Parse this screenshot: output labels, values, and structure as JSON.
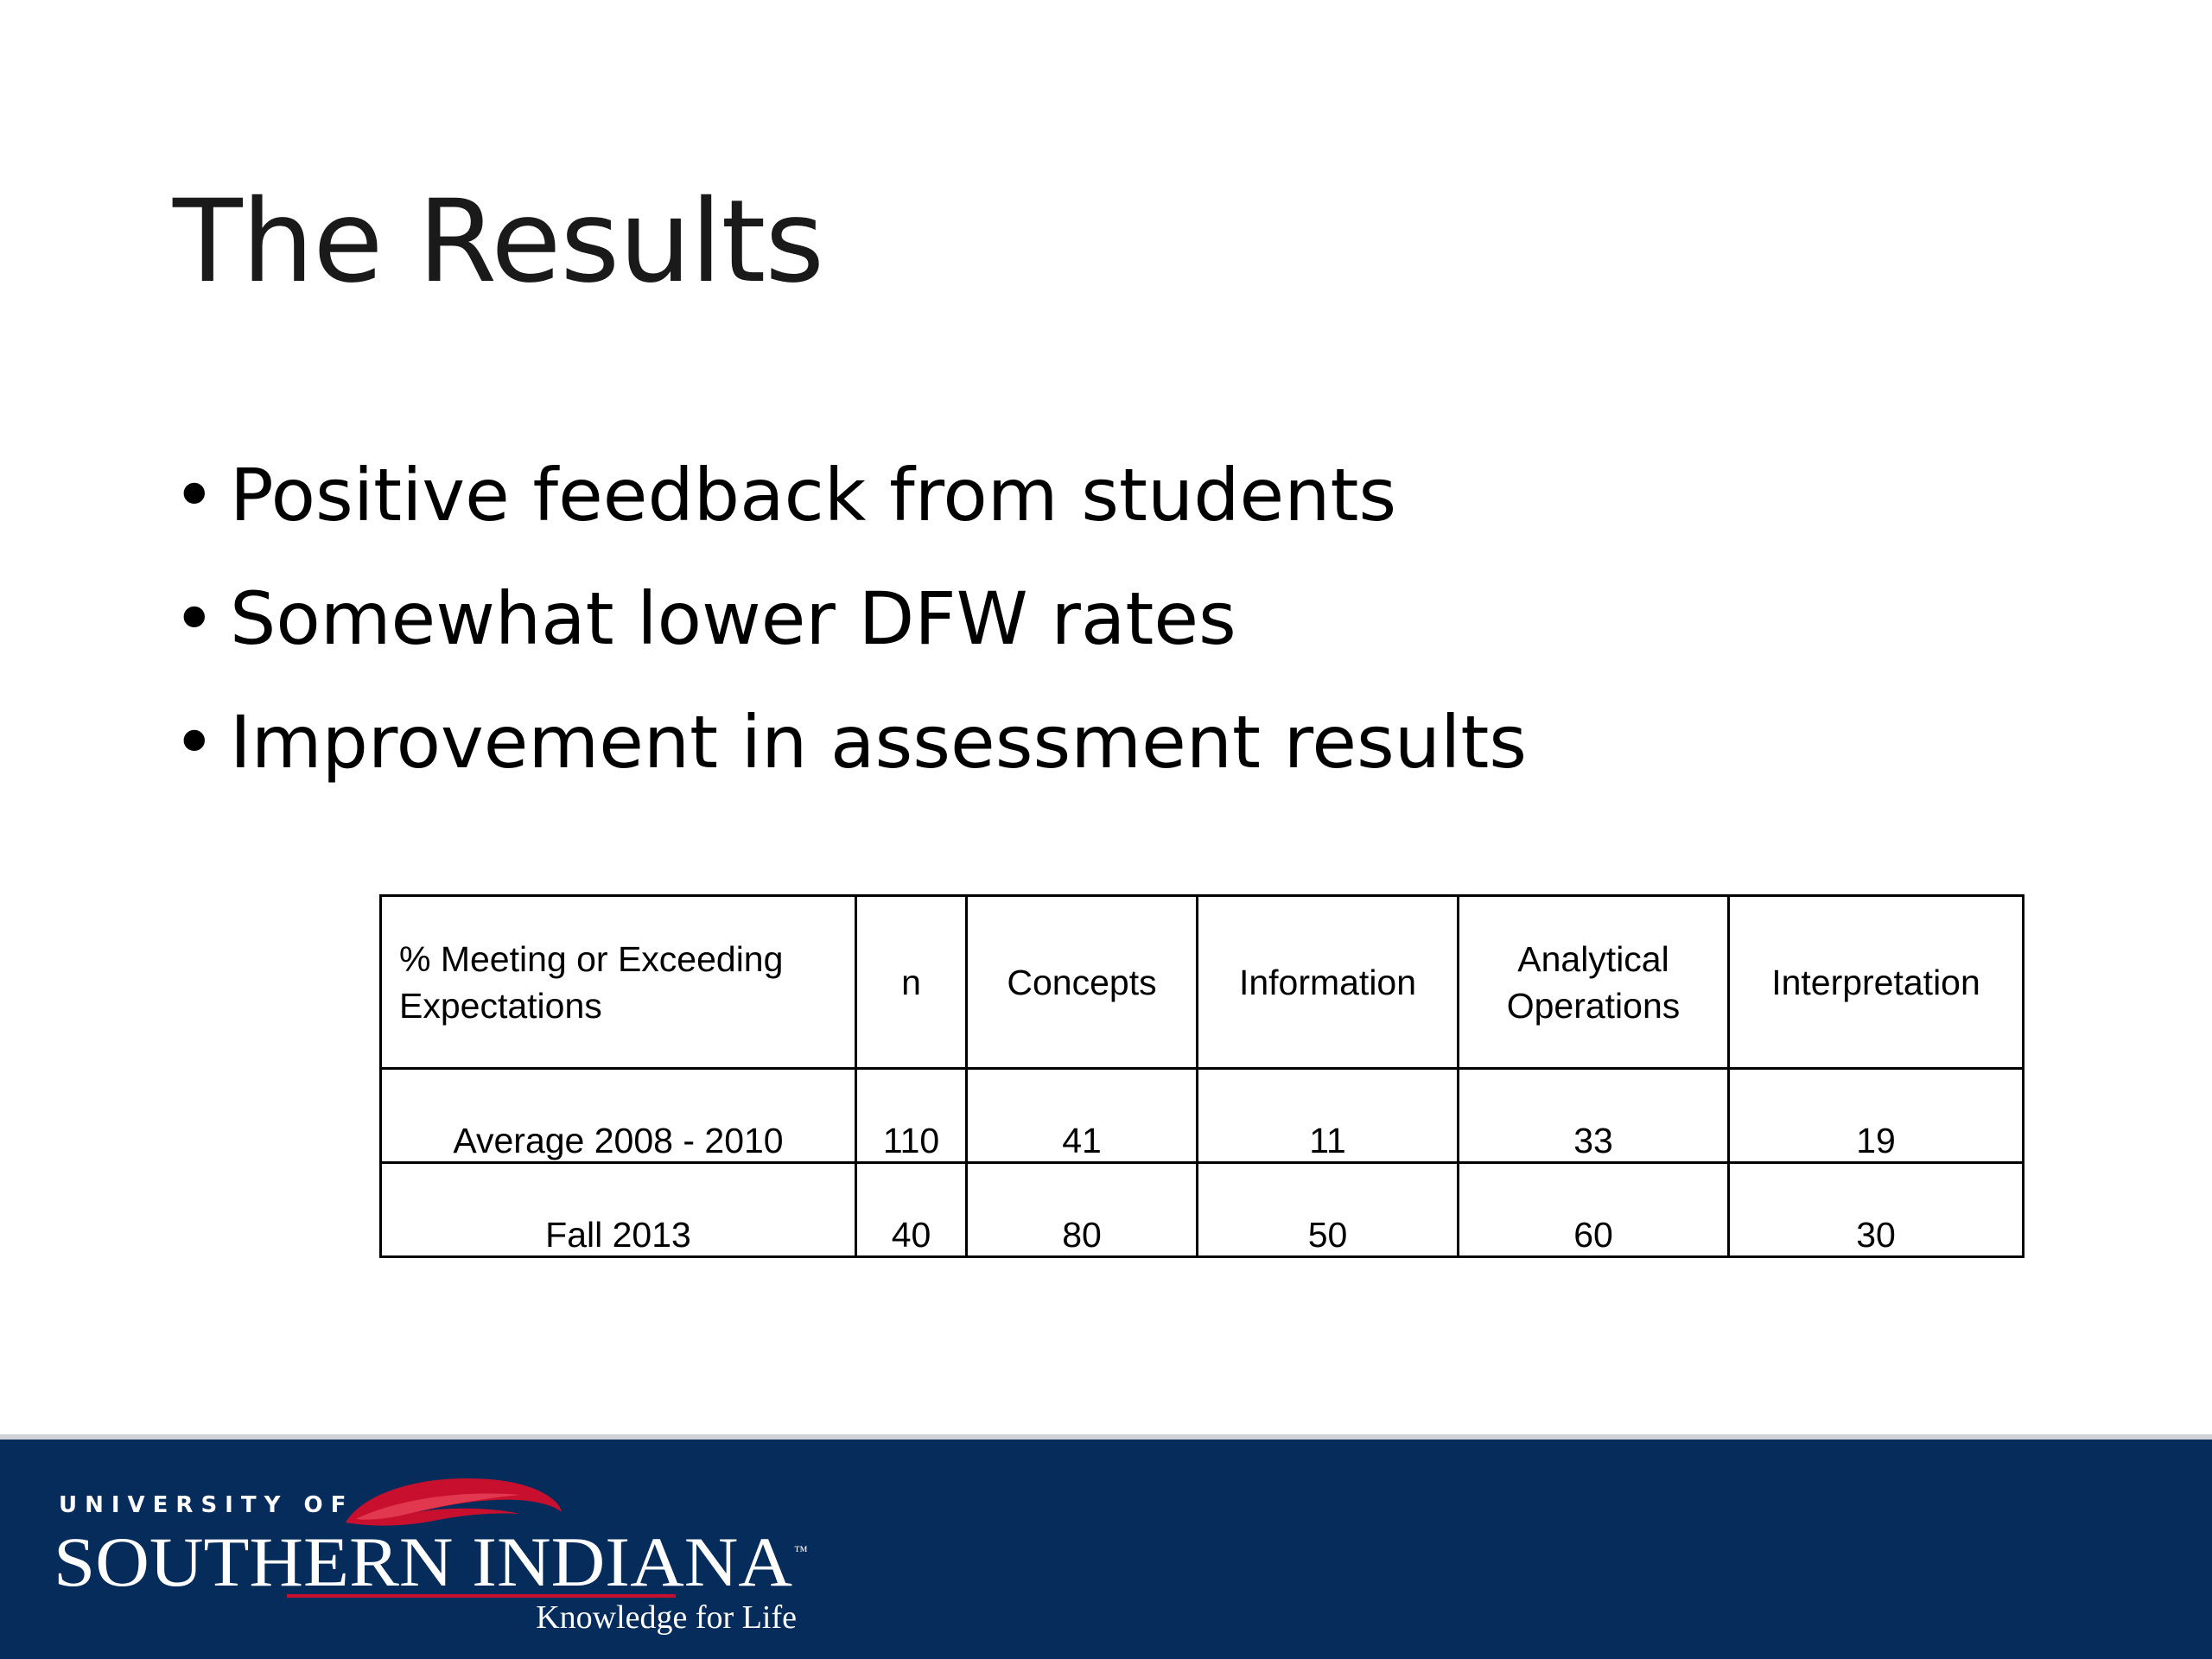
{
  "slide": {
    "title": "The Results",
    "bullet_char": "•",
    "bullets": [
      "Positive feedback from students",
      "Somewhat lower DFW rates",
      "Improvement in assessment results"
    ]
  },
  "table": {
    "header": {
      "corner_line1": "% Meeting or Exceeding",
      "corner_line2": "Expectations",
      "n": "n",
      "concepts": "Concepts",
      "information": "Information",
      "analytical_line1": "Analytical",
      "analytical_line2": "Operations",
      "interpretation": "Interpretation"
    },
    "rows": [
      {
        "label": "Average 2008 - 2010",
        "n": "110",
        "concepts": "41",
        "information": "11",
        "analytical": "33",
        "interpretation": "19"
      },
      {
        "label": "Fall 2013",
        "n": "40",
        "concepts": "80",
        "information": "50",
        "analytical": "60",
        "interpretation": "30"
      }
    ]
  },
  "footer": {
    "logo_top_text": "UNIVERSITY OF",
    "logo_main_text": "SOUTHERN INDIANA",
    "logo_tm": "™",
    "logo_tagline": "Knowledge for Life",
    "colors": {
      "band": "#062c5c",
      "flame": "#c8102e",
      "logo_text": "#ffffff"
    }
  }
}
